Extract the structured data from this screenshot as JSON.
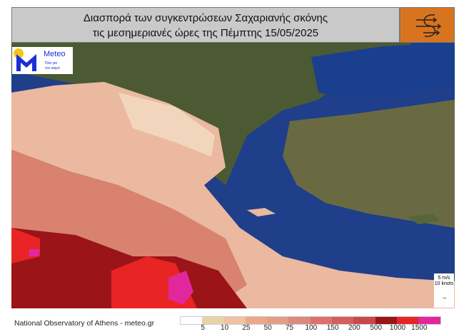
{
  "title": {
    "line1": "Διασπορά των συγκεντρώσεων Σαχαριανής σκόνης",
    "line2": "τις μεσημεριανές ώρες της Πέμπτης 15/05/2025"
  },
  "icon": "wind-swirl-icon",
  "logo": {
    "name": "Meteo",
    "tagline1": "Όλα για",
    "tagline2": "τον καιρό",
    "colors": {
      "m": "#1b2fd6",
      "sun": "#f5c518"
    }
  },
  "wind_scale": {
    "line1": "5 m/s",
    "line2": "10 knots"
  },
  "credit": "National Observatory of Athens - meteo.gr",
  "legend": {
    "colors": [
      "#ffffff",
      "#e8d3a8",
      "#efc2a2",
      "#eba98a",
      "#e59e86",
      "#dc8a7c",
      "#dc7070",
      "#d65d5d",
      "#c94848",
      "#9b1418",
      "#e82424",
      "#e0289c"
    ],
    "labels": [
      "5",
      "10",
      "25",
      "50",
      "75",
      "100",
      "150",
      "200",
      "500",
      "1000",
      "1500"
    ]
  }
}
